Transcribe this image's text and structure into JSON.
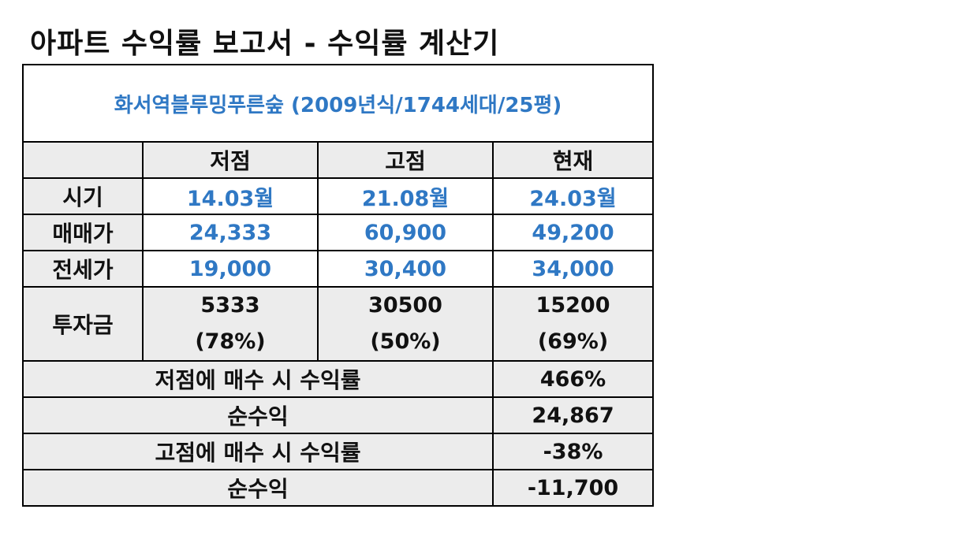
{
  "page": {
    "title": "아파트 수익률 보고서 - 수익률 계산기"
  },
  "apartment": {
    "name": "화서역블루밍푸른숲 (2009년식/1744세대/25평)"
  },
  "columns": {
    "low": "저점",
    "high": "고점",
    "current": "현재"
  },
  "rows": {
    "period": {
      "label": "시기",
      "low": "14.03월",
      "high": "21.08월",
      "current": "24.03월"
    },
    "sale_price": {
      "label": "매매가",
      "low": "24,333",
      "high": "60,900",
      "current": "49,200"
    },
    "jeonse_price": {
      "label": "전세가",
      "low": "19,000",
      "high": "30,400",
      "current": "34,000"
    },
    "investment": {
      "label": "투자금",
      "low_amount": "5333",
      "low_ratio": "(78%)",
      "high_amount": "30500",
      "high_ratio": "(50%)",
      "current_amount": "15200",
      "current_ratio": "(69%)"
    }
  },
  "summary": {
    "low_return_label": "저점에 매수 시 수익률",
    "low_return_value": "466%",
    "low_profit_label": "순수익",
    "low_profit_value": "24,867",
    "high_return_label": "고점에 매수 시 수익률",
    "high_return_value": "-38%",
    "high_profit_label": "순수익",
    "high_profit_value": "-11,700"
  },
  "colors": {
    "accent_blue": "#2f78c4",
    "header_grey": "#ececec",
    "border": "#000000"
  }
}
